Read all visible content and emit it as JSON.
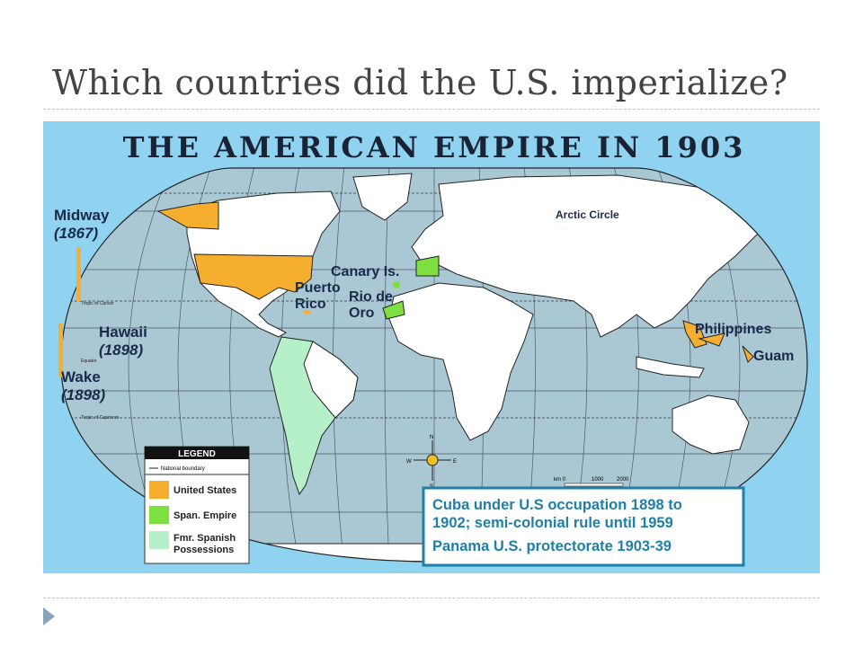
{
  "slide": {
    "title": "Which countries did the U.S. imperialize?"
  },
  "map": {
    "title": "THE AMERICAN EMPIRE IN 1903",
    "labels": {
      "midway": "Midway",
      "midway_year": "(1867)",
      "hawaii": "Hawaii",
      "hawaii_year": "(1898)",
      "wake": "Wake",
      "wake_year": "(1898)",
      "canary": "Canary Is.",
      "puerto": "Puerto",
      "rico": "Rico",
      "rio": "Rio de",
      "oro": "Oro",
      "philippines": "Philippines",
      "guam": "Guam",
      "arctic": "Arctic Circle",
      "tropic_cancer": "Tropic of Cancer",
      "equator": "Equator",
      "tropic_capricorn": "Tropic of Capricorn"
    },
    "compass": {
      "n": "N",
      "s": "S",
      "e": "E",
      "w": "W"
    },
    "scale": {
      "unit": "km 0",
      "mid": "1000",
      "max": "2000"
    },
    "legend": {
      "title": "LEGEND",
      "boundary": "National boundary",
      "items": [
        {
          "label": "United States",
          "color": "#f5ae2e"
        },
        {
          "label": "Span. Empire",
          "color": "#7ee040"
        },
        {
          "label_1": "Fmr. Spanish",
          "label_2": "Possessions",
          "color": "#b6f0c8"
        }
      ]
    },
    "note": {
      "line1": "Cuba under U.S occupation 1898 to",
      "line2": "1902; semi-colonial rule until 1959",
      "line3": "Panama U.S. protectorate 1903-39"
    },
    "colors": {
      "frame": "#8fd3f0",
      "ocean": "#a9c8d4",
      "land": "#ffffff",
      "title": "#1a2236",
      "note_text": "#1f7fa8"
    }
  }
}
